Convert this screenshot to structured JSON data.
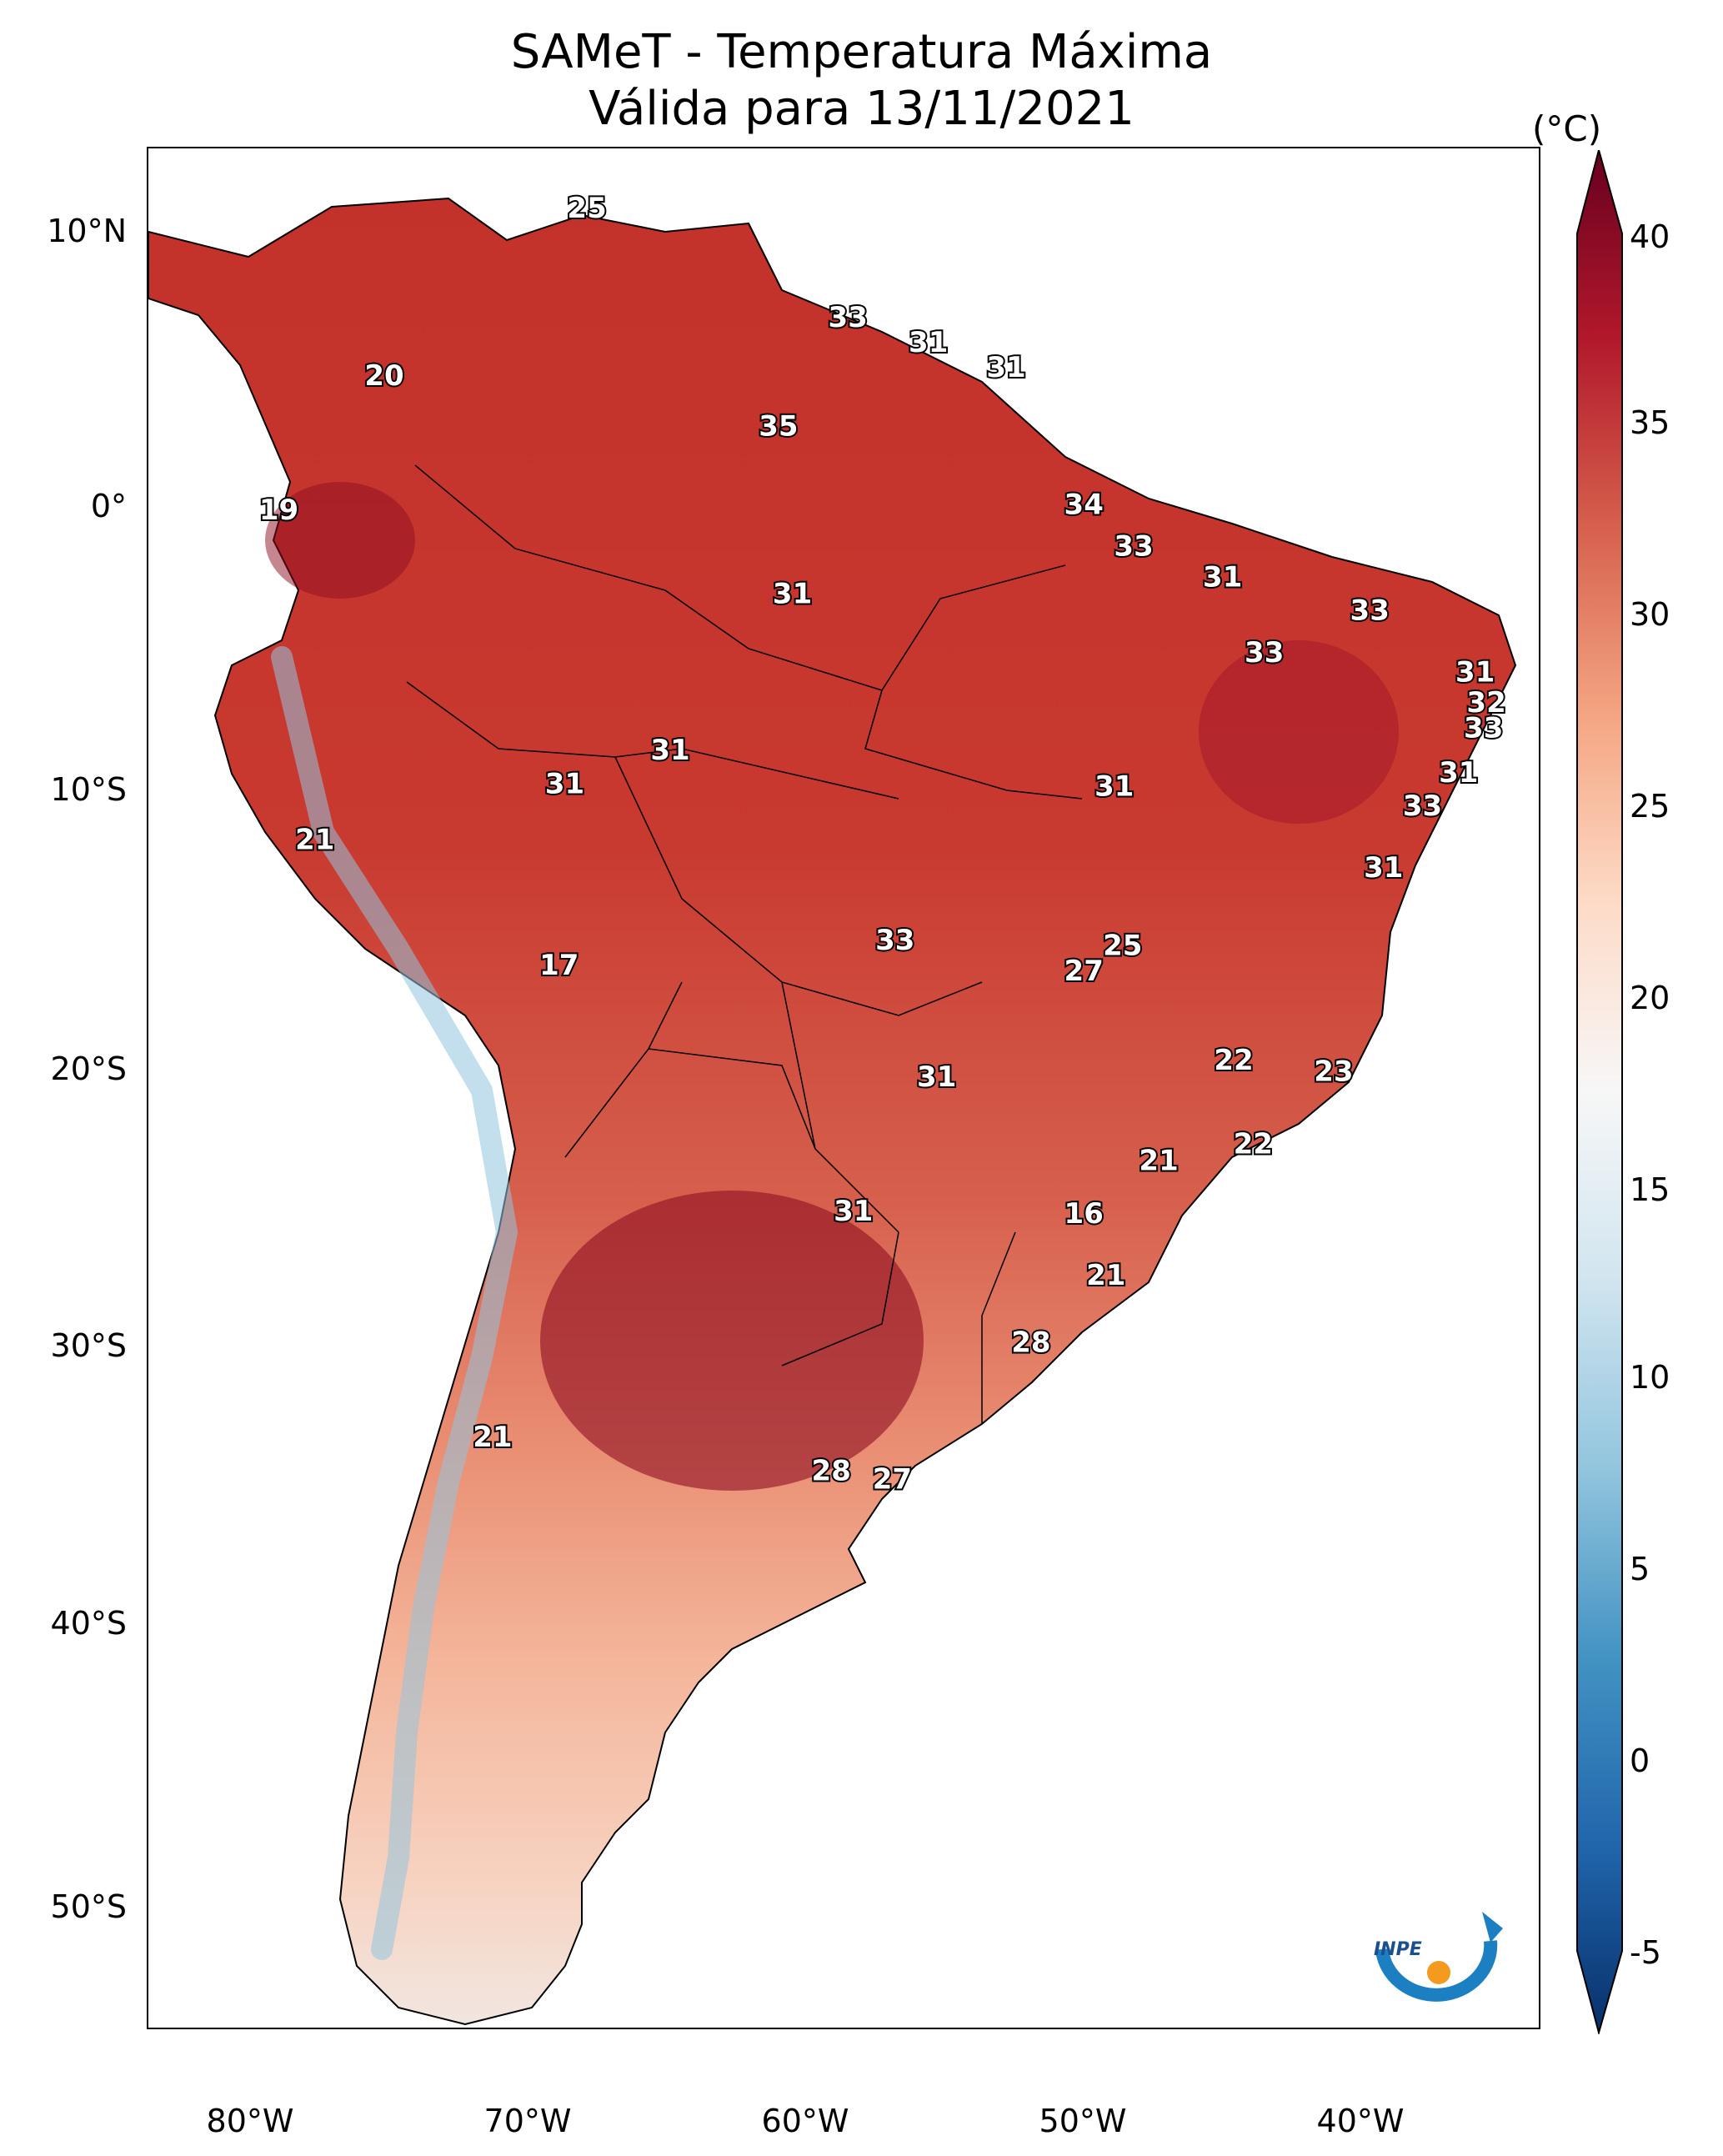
{
  "title": "SAMeT - Temperatura Máxima",
  "subtitle": "Válida para 13/11/2021",
  "colorbar": {
    "unit": "(°C)",
    "ticks": [
      "40",
      "35",
      "30",
      "25",
      "20",
      "15",
      "10",
      "5",
      "0",
      "-5"
    ],
    "range": [
      -5,
      40
    ],
    "colors": [
      "#08306b",
      "#2166ac",
      "#4393c3",
      "#92c5de",
      "#d1e5f0",
      "#f7f7f7",
      "#fddbc7",
      "#f4a582",
      "#d6604d",
      "#b2182b",
      "#67001f"
    ]
  },
  "lat_labels": [
    "10°N",
    "0°",
    "10°S",
    "20°S",
    "30°S",
    "40°S",
    "50°S"
  ],
  "lon_labels": [
    "80°W",
    "70°W",
    "60°W",
    "50°W",
    "40°W"
  ],
  "logo": {
    "text": "INPE"
  },
  "temps": [
    {
      "t": "25",
      "lon": -67.2,
      "lat": 10.6
    },
    {
      "t": "20",
      "lon": -74.5,
      "lat": 4.6
    },
    {
      "t": "19",
      "lon": -78.3,
      "lat": -0.2
    },
    {
      "t": "33",
      "lon": -57.8,
      "lat": 6.7
    },
    {
      "t": "31",
      "lon": -54.9,
      "lat": 5.8
    },
    {
      "t": "31",
      "lon": -52.1,
      "lat": 4.9
    },
    {
      "t": "35",
      "lon": -60.3,
      "lat": 2.8
    },
    {
      "t": "34",
      "lon": -49.3,
      "lat": 0.0
    },
    {
      "t": "31",
      "lon": -59.8,
      "lat": -3.2
    },
    {
      "t": "33",
      "lon": -47.5,
      "lat": -1.5
    },
    {
      "t": "31",
      "lon": -44.3,
      "lat": -2.6
    },
    {
      "t": "33",
      "lon": -39.0,
      "lat": -3.8
    },
    {
      "t": "33",
      "lon": -42.8,
      "lat": -5.3
    },
    {
      "t": "31",
      "lon": -35.2,
      "lat": -6.0
    },
    {
      "t": "32",
      "lon": -34.8,
      "lat": -7.1
    },
    {
      "t": "33",
      "lon": -34.9,
      "lat": -8.0
    },
    {
      "t": "31",
      "lon": -64.2,
      "lat": -8.8
    },
    {
      "t": "31",
      "lon": -68.0,
      "lat": -10.0
    },
    {
      "t": "31",
      "lon": -48.2,
      "lat": -10.1
    },
    {
      "t": "31",
      "lon": -35.8,
      "lat": -9.6
    },
    {
      "t": "33",
      "lon": -37.1,
      "lat": -10.8
    },
    {
      "t": "21",
      "lon": -77.0,
      "lat": -12.0
    },
    {
      "t": "31",
      "lon": -38.5,
      "lat": -13.0
    },
    {
      "t": "33",
      "lon": -56.1,
      "lat": -15.6
    },
    {
      "t": "25",
      "lon": -47.9,
      "lat": -15.8
    },
    {
      "t": "27",
      "lon": -49.3,
      "lat": -16.7
    },
    {
      "t": "17",
      "lon": -68.2,
      "lat": -16.5
    },
    {
      "t": "22",
      "lon": -43.9,
      "lat": -19.9
    },
    {
      "t": "23",
      "lon": -40.3,
      "lat": -20.3
    },
    {
      "t": "31",
      "lon": -54.6,
      "lat": -20.5
    },
    {
      "t": "22",
      "lon": -43.2,
      "lat": -22.9
    },
    {
      "t": "21",
      "lon": -46.6,
      "lat": -23.5
    },
    {
      "t": "16",
      "lon": -49.3,
      "lat": -25.4
    },
    {
      "t": "31",
      "lon": -57.6,
      "lat": -25.3
    },
    {
      "t": "21",
      "lon": -48.5,
      "lat": -27.6
    },
    {
      "t": "28",
      "lon": -51.2,
      "lat": -30.0
    },
    {
      "t": "21",
      "lon": -70.6,
      "lat": -33.4
    },
    {
      "t": "28",
      "lon": -58.4,
      "lat": -34.6
    },
    {
      "t": "27",
      "lon": -56.2,
      "lat": -34.9
    }
  ]
}
